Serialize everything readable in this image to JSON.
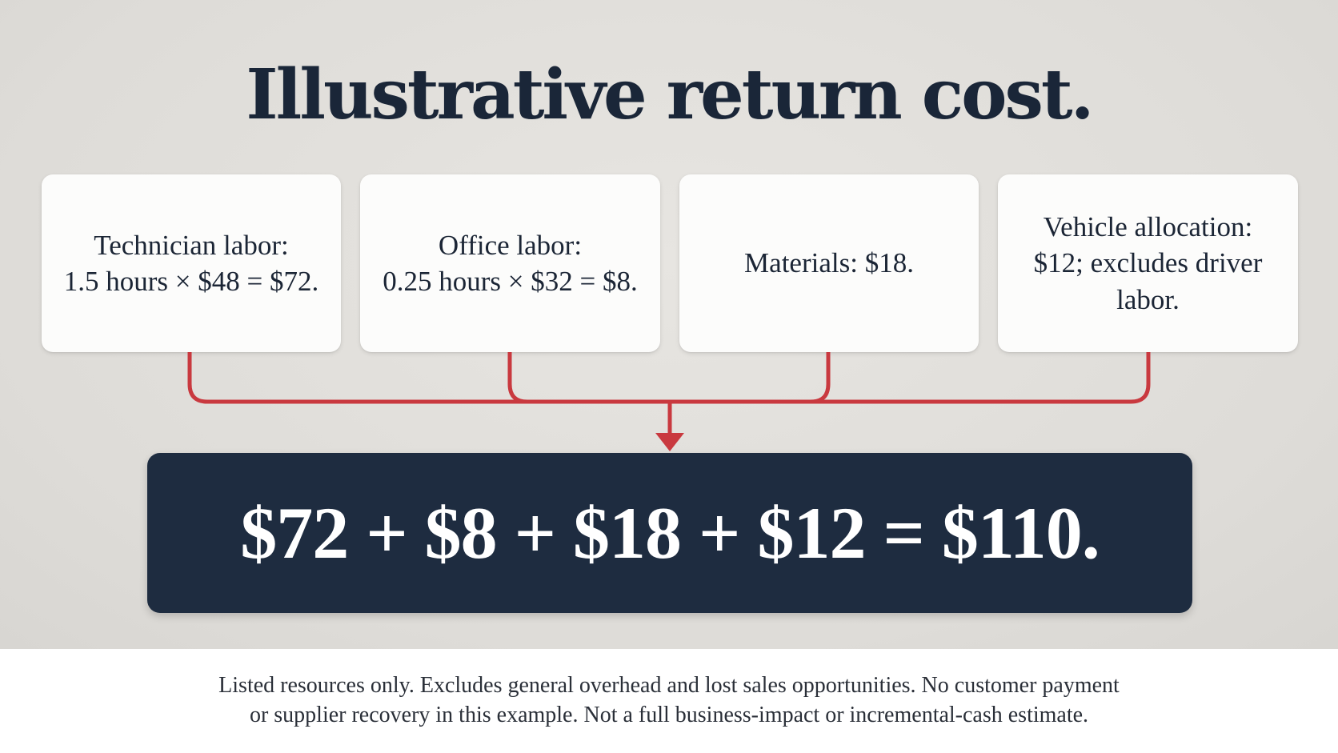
{
  "title": "Illustrative return cost.",
  "cards": [
    {
      "text": "Technician labor:\n1.5 hours × $48 = $72."
    },
    {
      "text": "Office labor:\n0.25 hours × $32 = $8."
    },
    {
      "text": "Materials: $18."
    },
    {
      "text": "Vehicle allocation:\n$12; excludes driver\nlabor."
    }
  ],
  "total": "$72 + $8 + $18 + $12 = $110.",
  "footnote": "Listed resources only. Excludes general overhead and lost sales opportunities. No customer payment\nor supplier recovery in this example. Not a full business-impact or incremental-cash estimate.",
  "colors": {
    "title": "#1a2638",
    "connector": "#c9393f",
    "total_box": "#1e2c40"
  }
}
